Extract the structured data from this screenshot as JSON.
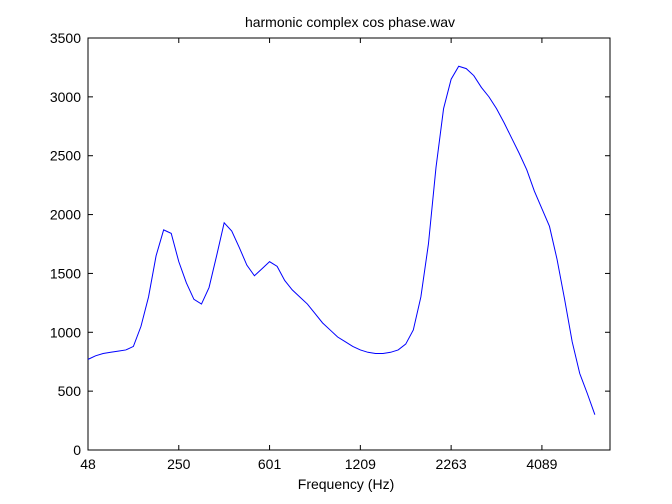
{
  "chart_data": {
    "type": "line",
    "title": "harmonic complex cos phase.wav",
    "xlabel": "Frequency (Hz)",
    "ylabel": "",
    "x_tick_labels": [
      "48",
      "250",
      "601",
      "1209",
      "2263",
      "4089"
    ],
    "x_index_range": [
      0,
      69
    ],
    "x_tick_indices": [
      0,
      12,
      24,
      36,
      48,
      60
    ],
    "ylim": [
      0,
      3500
    ],
    "y_ticks": [
      0,
      500,
      1000,
      1500,
      2000,
      2500,
      3000,
      3500
    ],
    "grid": false,
    "series": [
      {
        "color": "#0000ff",
        "x": [
          0,
          1,
          2,
          3,
          4,
          5,
          6,
          7,
          8,
          9,
          10,
          11,
          12,
          13,
          14,
          15,
          16,
          17,
          18,
          19,
          20,
          21,
          22,
          23,
          24,
          25,
          26,
          27,
          28,
          29,
          30,
          31,
          32,
          33,
          34,
          35,
          36,
          37,
          38,
          39,
          40,
          41,
          42,
          43,
          44,
          45,
          46,
          47,
          48,
          49,
          50,
          51,
          52,
          53,
          54,
          55,
          56,
          57,
          58,
          59,
          60,
          61,
          62,
          63,
          64,
          65,
          66,
          67
        ],
        "values": [
          770,
          800,
          820,
          830,
          840,
          850,
          880,
          1050,
          1300,
          1650,
          1870,
          1840,
          1600,
          1420,
          1280,
          1240,
          1380,
          1650,
          1930,
          1860,
          1720,
          1570,
          1480,
          1540,
          1600,
          1560,
          1440,
          1360,
          1300,
          1240,
          1160,
          1080,
          1020,
          960,
          920,
          880,
          850,
          830,
          820,
          820,
          830,
          850,
          900,
          1020,
          1300,
          1750,
          2400,
          2900,
          3150,
          3260,
          3240,
          3180,
          3080,
          3000,
          2900,
          2780,
          2650,
          2520,
          2380,
          2200,
          2050,
          1900,
          1620,
          1280,
          920,
          650,
          480,
          300
        ]
      }
    ]
  }
}
